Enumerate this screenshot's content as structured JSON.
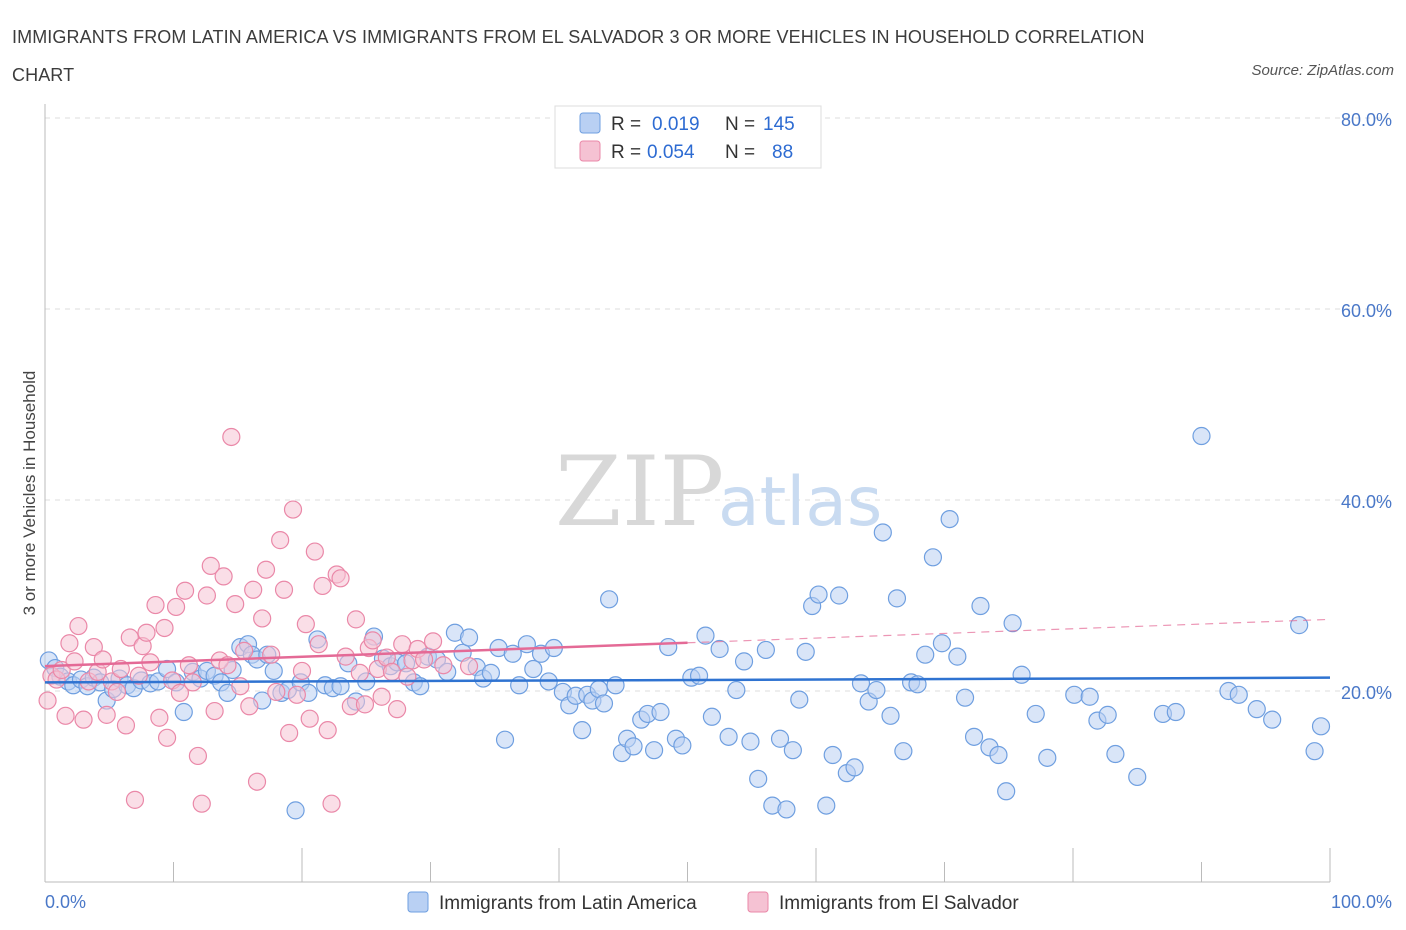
{
  "title": "IMMIGRANTS FROM LATIN AMERICA VS IMMIGRANTS FROM EL SALVADOR 3 OR MORE VEHICLES IN HOUSEHOLD CORRELATION CHART",
  "source": "Source: ZipAtlas.com",
  "watermark": {
    "zip": "ZIP",
    "atlas": "atlas"
  },
  "colors": {
    "blue": "#6f9fe0",
    "blue_fill": "#b9d0f3",
    "pink": "#ea88a8",
    "pink_fill": "#f5c2d3",
    "blue_line": "#2f73d1",
    "pink_line": "#e46a96"
  },
  "legend": {
    "items": [
      {
        "r_label": "R =",
        "r_value": "0.019",
        "n_label": "N =",
        "n_value": "145"
      },
      {
        "r_label": "R =",
        "r_value": "0.054",
        "n_label": "N =",
        "n_value": "88"
      }
    ]
  },
  "chart_data": {
    "type": "scatter",
    "title": "IMMIGRANTS FROM LATIN AMERICA VS IMMIGRANTS FROM EL SALVADOR 3 OR MORE VEHICLES IN HOUSEHOLD CORRELATION CHART",
    "xlabel": "",
    "ylabel": "3 or more Vehicles in Household",
    "xlim": [
      0,
      100
    ],
    "ylim": [
      0,
      80
    ],
    "x_tick_labels": [
      "0.0%",
      "100.0%"
    ],
    "y_ticks": [
      20,
      40,
      60,
      80
    ],
    "y_tick_labels": [
      "20.0%",
      "40.0%",
      "60.0%",
      "80.0%"
    ],
    "grid": true,
    "legend_position": "top-center",
    "series": [
      {
        "name": "Immigrants from Latin America",
        "color": "#6f9fe0",
        "trend": {
          "x0": 0,
          "y0": 20.9,
          "x1": 100,
          "y1": 21.4,
          "dashed_from": null
        },
        "points": [
          [
            0.3,
            23.2
          ],
          [
            0.8,
            22.4
          ],
          [
            1.2,
            21.5
          ],
          [
            1.8,
            21.0
          ],
          [
            2.2,
            20.6
          ],
          [
            2.8,
            21.2
          ],
          [
            3.3,
            20.5
          ],
          [
            3.8,
            21.4
          ],
          [
            4.3,
            20.9
          ],
          [
            4.8,
            19.0
          ],
          [
            5.3,
            20.2
          ],
          [
            5.8,
            21.3
          ],
          [
            6.4,
            20.6
          ],
          [
            6.9,
            20.3
          ],
          [
            7.5,
            21.1
          ],
          [
            8.2,
            20.8
          ],
          [
            8.8,
            21.0
          ],
          [
            9.5,
            22.3
          ],
          [
            10.2,
            20.9
          ],
          [
            10.8,
            17.8
          ],
          [
            11.5,
            22.0
          ],
          [
            12.1,
            21.3
          ],
          [
            12.6,
            22.1
          ],
          [
            13.2,
            21.6
          ],
          [
            13.7,
            20.9
          ],
          [
            14.2,
            19.8
          ],
          [
            14.6,
            22.2
          ],
          [
            15.2,
            24.6
          ],
          [
            15.8,
            24.9
          ],
          [
            16.1,
            23.8
          ],
          [
            16.5,
            23.3
          ],
          [
            16.9,
            19.0
          ],
          [
            17.3,
            23.8
          ],
          [
            17.8,
            22.1
          ],
          [
            18.4,
            19.8
          ],
          [
            18.9,
            20.1
          ],
          [
            19.5,
            7.5
          ],
          [
            19.9,
            20.9
          ],
          [
            20.5,
            19.8
          ],
          [
            21.2,
            25.4
          ],
          [
            21.8,
            20.6
          ],
          [
            22.4,
            20.3
          ],
          [
            23.0,
            20.5
          ],
          [
            23.6,
            22.9
          ],
          [
            24.2,
            18.9
          ],
          [
            25.0,
            21.0
          ],
          [
            25.6,
            25.7
          ],
          [
            26.3,
            23.4
          ],
          [
            26.9,
            22.6
          ],
          [
            27.4,
            23.0
          ],
          [
            28.1,
            22.9
          ],
          [
            28.7,
            20.9
          ],
          [
            29.2,
            20.5
          ],
          [
            29.8,
            23.6
          ],
          [
            30.5,
            23.3
          ],
          [
            31.3,
            22.0
          ],
          [
            31.9,
            26.1
          ],
          [
            32.5,
            24.0
          ],
          [
            33.0,
            25.6
          ],
          [
            33.6,
            22.5
          ],
          [
            34.1,
            21.3
          ],
          [
            34.7,
            21.9
          ],
          [
            35.3,
            24.5
          ],
          [
            35.8,
            14.9
          ],
          [
            36.4,
            23.9
          ],
          [
            36.9,
            20.6
          ],
          [
            37.5,
            24.9
          ],
          [
            38.0,
            22.3
          ],
          [
            38.6,
            23.9
          ],
          [
            39.2,
            21.0
          ],
          [
            39.6,
            24.5
          ],
          [
            40.3,
            19.9
          ],
          [
            40.8,
            18.5
          ],
          [
            41.3,
            19.5
          ],
          [
            41.8,
            15.9
          ],
          [
            42.2,
            19.6
          ],
          [
            42.6,
            19.0
          ],
          [
            43.1,
            20.2
          ],
          [
            43.5,
            18.7
          ],
          [
            43.9,
            29.6
          ],
          [
            44.4,
            20.6
          ],
          [
            44.9,
            13.5
          ],
          [
            45.3,
            15.0
          ],
          [
            45.8,
            14.2
          ],
          [
            46.4,
            17.0
          ],
          [
            46.9,
            17.6
          ],
          [
            47.4,
            13.8
          ],
          [
            47.9,
            17.8
          ],
          [
            48.5,
            24.6
          ],
          [
            49.1,
            15.0
          ],
          [
            49.6,
            14.3
          ],
          [
            50.3,
            21.4
          ],
          [
            50.9,
            21.6
          ],
          [
            51.4,
            25.8
          ],
          [
            51.9,
            17.3
          ],
          [
            52.5,
            24.4
          ],
          [
            53.2,
            15.2
          ],
          [
            53.8,
            20.1
          ],
          [
            54.4,
            23.1
          ],
          [
            54.9,
            14.7
          ],
          [
            55.5,
            10.8
          ],
          [
            56.1,
            24.3
          ],
          [
            56.6,
            8.0
          ],
          [
            57.2,
            15.0
          ],
          [
            57.7,
            7.6
          ],
          [
            58.2,
            13.8
          ],
          [
            58.7,
            19.1
          ],
          [
            59.2,
            24.1
          ],
          [
            59.7,
            28.9
          ],
          [
            60.2,
            30.1
          ],
          [
            60.8,
            8.0
          ],
          [
            61.3,
            13.3
          ],
          [
            61.8,
            30.0
          ],
          [
            62.4,
            11.4
          ],
          [
            63.0,
            12.0
          ],
          [
            63.5,
            20.8
          ],
          [
            64.1,
            18.9
          ],
          [
            64.7,
            20.1
          ],
          [
            65.2,
            36.6
          ],
          [
            65.8,
            17.4
          ],
          [
            66.3,
            29.7
          ],
          [
            66.8,
            13.7
          ],
          [
            67.4,
            20.9
          ],
          [
            67.9,
            20.7
          ],
          [
            68.5,
            23.8
          ],
          [
            69.1,
            34.0
          ],
          [
            69.8,
            25.0
          ],
          [
            70.4,
            38.0
          ],
          [
            71.0,
            23.6
          ],
          [
            71.6,
            19.3
          ],
          [
            72.3,
            15.2
          ],
          [
            72.8,
            28.9
          ],
          [
            73.5,
            14.1
          ],
          [
            74.2,
            13.3
          ],
          [
            74.8,
            9.5
          ],
          [
            75.3,
            27.1
          ],
          [
            76.0,
            21.7
          ],
          [
            77.1,
            17.6
          ],
          [
            78.0,
            13.0
          ],
          [
            80.1,
            19.6
          ],
          [
            81.3,
            19.4
          ],
          [
            81.9,
            16.9
          ],
          [
            82.7,
            17.5
          ],
          [
            83.3,
            13.4
          ],
          [
            85.0,
            11.0
          ],
          [
            87.0,
            17.6
          ],
          [
            88.0,
            17.8
          ],
          [
            90.0,
            46.7
          ],
          [
            92.1,
            20.0
          ],
          [
            92.9,
            19.6
          ],
          [
            94.3,
            18.1
          ],
          [
            95.5,
            17.0
          ],
          [
            97.6,
            26.9
          ],
          [
            98.8,
            13.7
          ],
          [
            99.3,
            16.3
          ]
        ]
      },
      {
        "name": "Immigrants from El Salvador",
        "color": "#ea88a8",
        "trend": {
          "x0": 0,
          "y0": 22.6,
          "x1": 100,
          "y1": 27.5,
          "dashed_from": 50
        },
        "points": [
          [
            0.2,
            19.0
          ],
          [
            0.5,
            21.6
          ],
          [
            0.9,
            21.2
          ],
          [
            1.3,
            22.2
          ],
          [
            1.6,
            17.4
          ],
          [
            1.9,
            25.0
          ],
          [
            2.3,
            23.1
          ],
          [
            2.6,
            26.8
          ],
          [
            3.0,
            17.0
          ],
          [
            3.4,
            21.0
          ],
          [
            3.8,
            24.6
          ],
          [
            4.1,
            22.0
          ],
          [
            4.5,
            23.3
          ],
          [
            4.8,
            17.5
          ],
          [
            5.2,
            21.0
          ],
          [
            5.6,
            19.9
          ],
          [
            5.9,
            22.3
          ],
          [
            6.3,
            16.4
          ],
          [
            6.6,
            25.6
          ],
          [
            7.0,
            8.6
          ],
          [
            7.3,
            21.6
          ],
          [
            7.6,
            24.7
          ],
          [
            7.9,
            26.1
          ],
          [
            8.2,
            23.0
          ],
          [
            8.6,
            29.0
          ],
          [
            8.9,
            17.2
          ],
          [
            9.3,
            26.6
          ],
          [
            9.5,
            15.1
          ],
          [
            9.9,
            21.1
          ],
          [
            10.2,
            28.8
          ],
          [
            10.5,
            19.8
          ],
          [
            10.9,
            30.5
          ],
          [
            11.2,
            22.7
          ],
          [
            11.5,
            20.9
          ],
          [
            11.9,
            13.2
          ],
          [
            12.2,
            8.2
          ],
          [
            12.6,
            30.0
          ],
          [
            12.9,
            33.1
          ],
          [
            13.2,
            17.9
          ],
          [
            13.6,
            23.2
          ],
          [
            13.9,
            32.0
          ],
          [
            14.2,
            22.7
          ],
          [
            14.5,
            46.6
          ],
          [
            14.8,
            29.1
          ],
          [
            15.2,
            20.5
          ],
          [
            15.5,
            24.2
          ],
          [
            15.9,
            18.4
          ],
          [
            16.2,
            30.6
          ],
          [
            16.5,
            10.5
          ],
          [
            16.9,
            27.6
          ],
          [
            17.2,
            32.7
          ],
          [
            17.6,
            23.8
          ],
          [
            18.0,
            19.9
          ],
          [
            18.3,
            35.8
          ],
          [
            18.6,
            30.6
          ],
          [
            19.0,
            15.6
          ],
          [
            19.3,
            39.0
          ],
          [
            19.6,
            19.6
          ],
          [
            20.0,
            22.1
          ],
          [
            20.3,
            27.0
          ],
          [
            20.6,
            17.1
          ],
          [
            21.0,
            34.6
          ],
          [
            21.3,
            24.9
          ],
          [
            21.6,
            31.0
          ],
          [
            22.0,
            15.9
          ],
          [
            22.3,
            8.2
          ],
          [
            22.7,
            32.2
          ],
          [
            23.0,
            31.8
          ],
          [
            23.4,
            23.6
          ],
          [
            23.8,
            18.4
          ],
          [
            24.2,
            27.5
          ],
          [
            24.5,
            21.9
          ],
          [
            24.9,
            18.6
          ],
          [
            25.2,
            24.5
          ],
          [
            25.5,
            25.3
          ],
          [
            25.9,
            22.3
          ],
          [
            26.2,
            19.4
          ],
          [
            26.6,
            23.5
          ],
          [
            27.0,
            22.0
          ],
          [
            27.4,
            18.1
          ],
          [
            27.8,
            24.9
          ],
          [
            28.2,
            21.5
          ],
          [
            28.6,
            23.2
          ],
          [
            29.0,
            24.4
          ],
          [
            29.5,
            23.3
          ],
          [
            30.2,
            25.2
          ],
          [
            31.0,
            22.7
          ],
          [
            33.0,
            22.6
          ]
        ]
      }
    ],
    "bottom_legend": [
      "Immigrants from Latin America",
      "Immigrants from El Salvador"
    ]
  }
}
